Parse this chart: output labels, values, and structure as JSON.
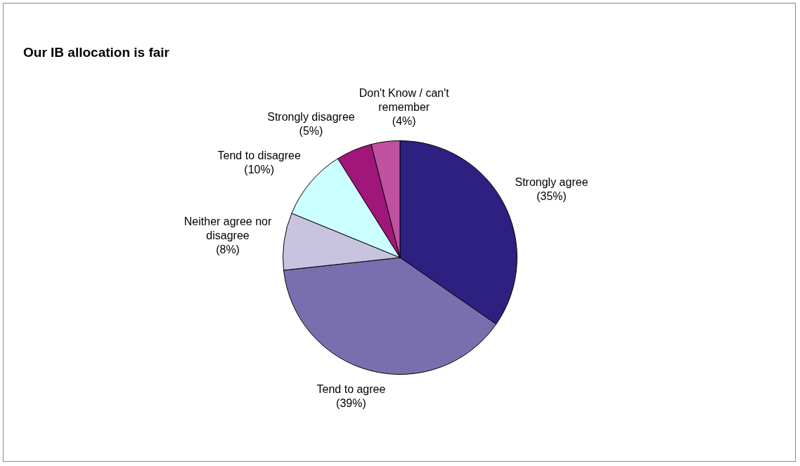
{
  "chart_data": {
    "type": "pie",
    "title": "Our IB allocation is fair",
    "categories": [
      "Strongly agree",
      "Tend to agree",
      "Neither agree nor disagree",
      "Tend to disagree",
      "Strongly disagree",
      "Don't Know / can't remember"
    ],
    "values": [
      35,
      39,
      8,
      10,
      5,
      4
    ],
    "value_labels": [
      "(35%)",
      "(39%)",
      "(8%)",
      "(10%)",
      "(5%)",
      "(4%)"
    ],
    "colors": [
      "#2e2080",
      "#7a6fae",
      "#c8c4e0",
      "#ccffff",
      "#a0167a",
      "#c050a0"
    ],
    "legend": false
  }
}
